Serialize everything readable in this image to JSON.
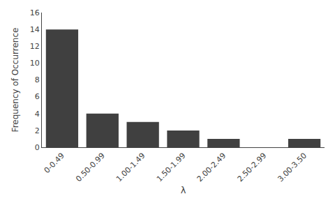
{
  "chart_data": {
    "type": "bar",
    "categories": [
      "0-0.49",
      "0.50-0.99",
      "1.00-1.49",
      "1.50-1.99",
      "2.00-2.49",
      "2.50-2.99",
      "3.00-3.50"
    ],
    "values": [
      14,
      4,
      3,
      2,
      1,
      0,
      1
    ],
    "color": "#404040",
    "xlabel": "λ",
    "ylabel": "Frequency of Occurrence",
    "ylim": [
      0,
      16
    ],
    "yticks": [
      0,
      2,
      4,
      6,
      8,
      10,
      12,
      14,
      16
    ],
    "grid": false
  }
}
